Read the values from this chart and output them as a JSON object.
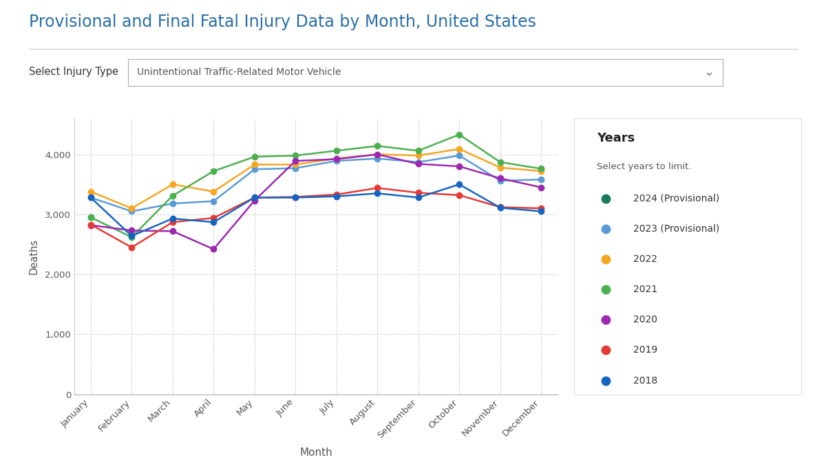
{
  "title": "Provisional and Final Fatal Injury Data by Month, United States",
  "subtitle_label": "Select Injury Type",
  "subtitle_value": "Unintentional Traffic-Related Motor Vehicle",
  "xlabel": "Month",
  "ylabel": "Deaths",
  "months": [
    "January",
    "February",
    "March",
    "April",
    "May",
    "June",
    "July",
    "August",
    "September",
    "October",
    "November",
    "December"
  ],
  "ylim": [
    0,
    4600
  ],
  "yticks": [
    0,
    1000,
    2000,
    3000,
    4000
  ],
  "series": [
    {
      "label": "2024 (Provisional)",
      "color": "#1a7a5e",
      "values": [
        2950,
        null,
        null,
        null,
        null,
        null,
        null,
        null,
        null,
        null,
        null,
        null
      ]
    },
    {
      "label": "2023 (Provisional)",
      "color": "#5b9bd5",
      "values": [
        3280,
        3050,
        3180,
        3220,
        3750,
        3770,
        3890,
        3930,
        3870,
        3980,
        3560,
        3580
      ]
    },
    {
      "label": "2022",
      "color": "#f5a623",
      "values": [
        3380,
        3100,
        3500,
        3380,
        3830,
        3830,
        3930,
        4000,
        3980,
        4090,
        3780,
        3720
      ]
    },
    {
      "label": "2021",
      "color": "#4caf50",
      "values": [
        2950,
        2620,
        3310,
        3720,
        3960,
        3980,
        4060,
        4140,
        4060,
        4330,
        3870,
        3760
      ]
    },
    {
      "label": "2020",
      "color": "#9c27b0",
      "values": [
        2820,
        2730,
        2720,
        2420,
        3230,
        3890,
        3920,
        4000,
        3840,
        3800,
        3600,
        3450
      ]
    },
    {
      "label": "2019",
      "color": "#e53935",
      "values": [
        2830,
        2450,
        2870,
        2940,
        3280,
        3290,
        3330,
        3440,
        3360,
        3320,
        3120,
        3100
      ]
    },
    {
      "label": "2018",
      "color": "#1565c0",
      "values": [
        3280,
        2640,
        2930,
        2870,
        3280,
        3280,
        3300,
        3350,
        3280,
        3500,
        3110,
        3050
      ]
    }
  ],
  "legend_title": "Years",
  "legend_subtitle": "Select years to limit.",
  "background_color": "#ffffff",
  "plot_bg_color": "#ffffff",
  "grid_color": "#d0d0d0",
  "title_color": "#2a6fa8",
  "axis_label_color": "#555555",
  "tick_color": "#555555"
}
